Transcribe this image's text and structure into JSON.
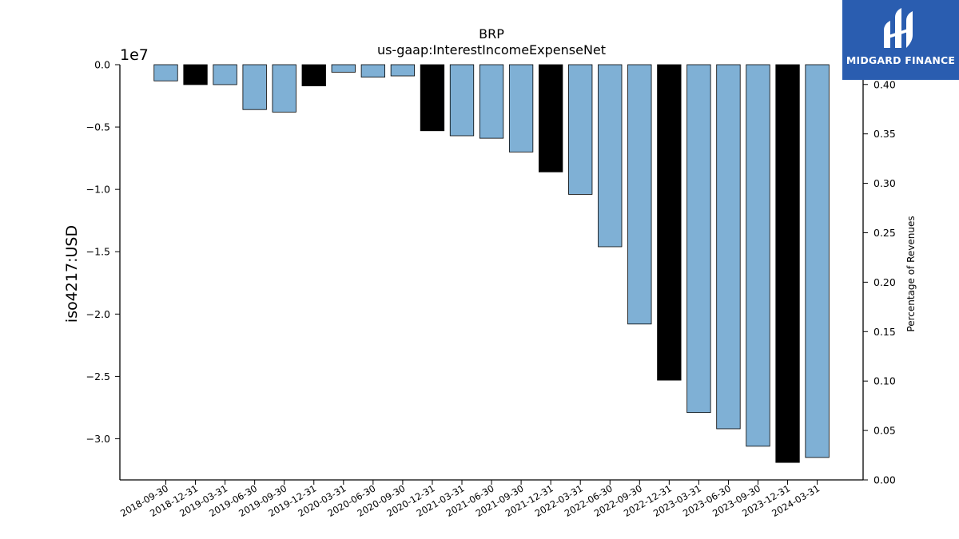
{
  "chart_data": {
    "type": "bar",
    "title": "BRP",
    "subtitle": "us-gaap:InterestIncomeExpenseNet",
    "ylabel": "iso4217:USD",
    "y2label": "Percentage of Revenues",
    "y_offset_label": "1e7",
    "ylim": [
      -33300000,
      0
    ],
    "y2lim": [
      0.0,
      0.42
    ],
    "yticks": [
      {
        "value": 0,
        "label": "0.0"
      },
      {
        "value": -5000000,
        "label": "−0.5"
      },
      {
        "value": -10000000,
        "label": "−1.0"
      },
      {
        "value": -15000000,
        "label": "−1.5"
      },
      {
        "value": -20000000,
        "label": "−2.0"
      },
      {
        "value": -25000000,
        "label": "−2.5"
      },
      {
        "value": -30000000,
        "label": "−3.0"
      }
    ],
    "y2ticks": [
      {
        "value": 0.0,
        "label": "0.00"
      },
      {
        "value": 0.05,
        "label": "0.05"
      },
      {
        "value": 0.1,
        "label": "0.10"
      },
      {
        "value": 0.15,
        "label": "0.15"
      },
      {
        "value": 0.2,
        "label": "0.20"
      },
      {
        "value": 0.25,
        "label": "0.25"
      },
      {
        "value": 0.3,
        "label": "0.30"
      },
      {
        "value": 0.35,
        "label": "0.35"
      },
      {
        "value": 0.4,
        "label": "0.40"
      }
    ],
    "categories": [
      "2018-09-30",
      "2018-12-31",
      "2019-03-31",
      "2019-06-30",
      "2019-09-30",
      "2019-12-31",
      "2020-03-31",
      "2020-06-30",
      "2020-09-30",
      "2020-12-31",
      "2021-03-31",
      "2021-06-30",
      "2021-09-30",
      "2021-12-31",
      "2022-03-31",
      "2022-06-30",
      "2022-09-30",
      "2022-12-31",
      "2023-03-31",
      "2023-06-30",
      "2023-09-30",
      "2023-12-31",
      "2024-03-31"
    ],
    "values": [
      -1300000,
      -1600000,
      -1600000,
      -3600000,
      -3800000,
      -1700000,
      -600000,
      -1000000,
      -900000,
      -5300000,
      -5700000,
      -5900000,
      -7000000,
      -8600000,
      -10400000,
      -14600000,
      -20800000,
      -25300000,
      -27900000,
      -29200000,
      -30600000,
      -31900000,
      -31500000
    ],
    "bar_kind": [
      "quarter",
      "annual",
      "quarter",
      "quarter",
      "quarter",
      "annual",
      "quarter",
      "quarter",
      "quarter",
      "annual",
      "quarter",
      "quarter",
      "quarter",
      "annual",
      "quarter",
      "quarter",
      "quarter",
      "annual",
      "quarter",
      "quarter",
      "quarter",
      "annual",
      "quarter"
    ],
    "colors": {
      "quarter": "#7fb0d5",
      "annual": "#000000"
    },
    "grid": false
  },
  "logo": {
    "text": "MIDGARD FINANCE"
  }
}
